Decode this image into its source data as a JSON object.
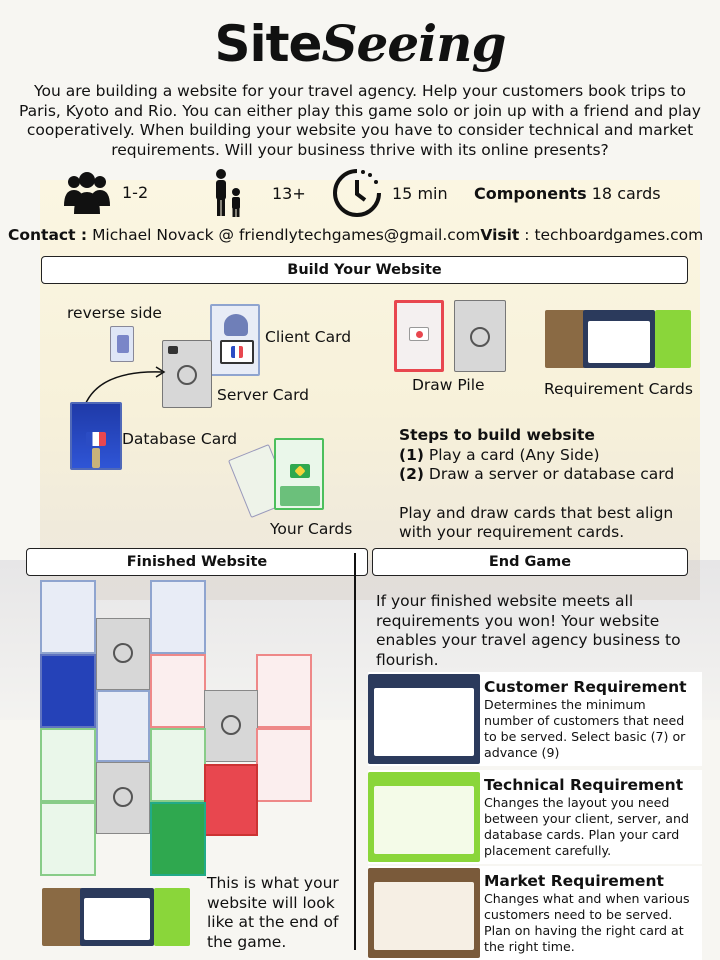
{
  "title": {
    "part1": "Site",
    "part2": "Seeing"
  },
  "intro": "You are  building a website for your travel agency. Help your customers book trips to Paris, Kyoto and Rio. You can either play this game solo or join up with a friend and play cooperatively. When building your website you have to consider technical and market requirements. Will your business thrive with its online presents?",
  "stats": {
    "players": "1-2",
    "age": "13+",
    "time": "15 min",
    "components_label": "Components",
    "components_value": "18 cards"
  },
  "contact": {
    "label": "Contact :",
    "value": "Michael Novack @ friendlytechgames@gmail.com",
    "visit_label": "Visit",
    "visit_value": ": techboardgames.com"
  },
  "build": {
    "header": "Build Your Website",
    "reverse_side": "reverse side",
    "client_card": "Client Card",
    "server_card": "Server Card",
    "database_card": "Database Card",
    "your_cards": "Your Cards",
    "draw_pile": "Draw Pile",
    "requirement_cards": "Requirement Cards",
    "steps_title": "Steps to build website",
    "step1_num": "(1)",
    "step1": " Play a card (Any Side)",
    "step2_num": "(2)",
    "step2": " Draw a server or database card",
    "advice": "Play and draw cards that best align with your requirement cards."
  },
  "finished": {
    "header": "Finished Website",
    "caption": "This is what your website will look like at the end of the game."
  },
  "endgame": {
    "header": "End Game",
    "text": "If your finished website meets all requirements you won! Your website enables your travel agency business to flourish.",
    "requirements": [
      {
        "title": "Customer Requirement",
        "desc": "Determines the minimum number of customers that need to be served. Select basic (7) or advance (9)"
      },
      {
        "title": "Technical Requirement",
        "desc": "Changes the layout you need between your client, server, and database cards. Plan your card placement carefully."
      },
      {
        "title": "Market Requirement",
        "desc": "Changes what and when various customers need to be served. Plan on having the right card at the right time."
      }
    ]
  },
  "colors": {
    "france": "#2b4cc4",
    "japan": "#e8474f",
    "brazil": "#2fa84f",
    "server": "#d7d7d7",
    "req_green": "#8ad63a",
    "req_brown": "#7a5a3a",
    "req_navy": "#2b3a5c"
  }
}
